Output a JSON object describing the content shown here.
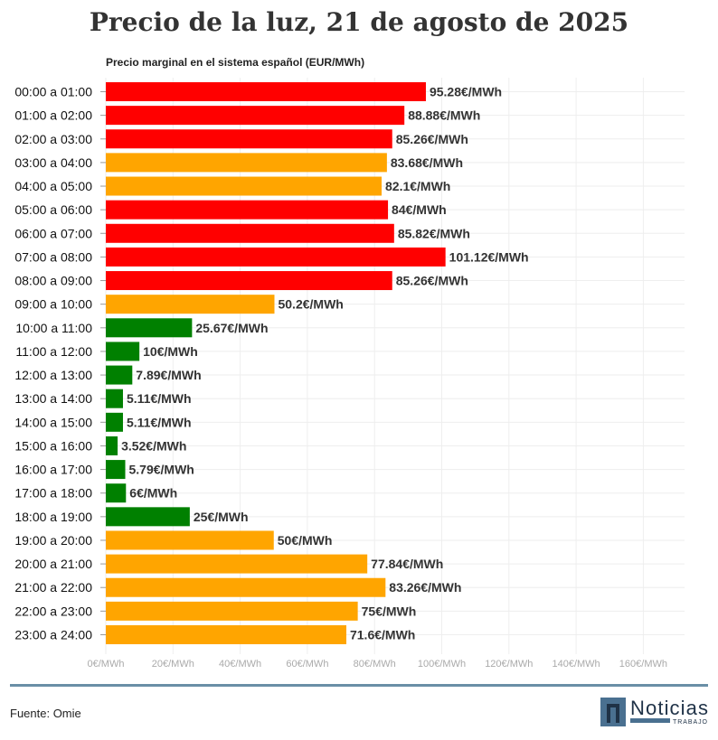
{
  "title": "Precio de la luz, 21 de agosto de 2025",
  "subtitle": "Precio marginal en el sistema español (EUR/MWh)",
  "source": "Fuente: Omie",
  "logo": {
    "name": "Noticias",
    "tagline": "TRABAJO"
  },
  "colors": {
    "high": "#ff0000",
    "mid": "#ffa500",
    "low": "#008000"
  },
  "chart_data": {
    "type": "bar",
    "orientation": "horizontal",
    "categories": [
      "00:00 a 01:00",
      "01:00 a 02:00",
      "02:00 a 03:00",
      "03:00 a 04:00",
      "04:00 a 05:00",
      "05:00 a 06:00",
      "06:00 a 07:00",
      "07:00 a 08:00",
      "08:00 a 09:00",
      "09:00 a 10:00",
      "10:00 a 11:00",
      "11:00 a 12:00",
      "12:00 a 13:00",
      "13:00 a 14:00",
      "14:00 a 15:00",
      "15:00 a 16:00",
      "16:00 a 17:00",
      "17:00 a 18:00",
      "18:00 a 19:00",
      "19:00 a 20:00",
      "20:00 a 21:00",
      "21:00 a 22:00",
      "22:00 a 23:00",
      "23:00 a 24:00"
    ],
    "values": [
      95.28,
      88.88,
      85.26,
      83.68,
      82.1,
      84,
      85.82,
      101.12,
      85.26,
      50.2,
      25.67,
      10,
      7.89,
      5.11,
      5.11,
      3.52,
      5.79,
      6,
      25,
      50,
      77.84,
      83.26,
      75,
      71.6
    ],
    "labels": [
      "95.28€/MWh",
      "88.88€/MWh",
      "85.26€/MWh",
      "83.68€/MWh",
      "82.1€/MWh",
      "84€/MWh",
      "85.82€/MWh",
      "101.12€/MWh",
      "85.26€/MWh",
      "50.2€/MWh",
      "25.67€/MWh",
      "10€/MWh",
      "7.89€/MWh",
      "5.11€/MWh",
      "5.11€/MWh",
      "3.52€/MWh",
      "5.79€/MWh",
      "6€/MWh",
      "25€/MWh",
      "50€/MWh",
      "77.84€/MWh",
      "83.26€/MWh",
      "75€/MWh",
      "71.6€/MWh"
    ],
    "bar_colors": [
      "high",
      "high",
      "high",
      "mid",
      "mid",
      "high",
      "high",
      "high",
      "high",
      "mid",
      "low",
      "low",
      "low",
      "low",
      "low",
      "low",
      "low",
      "low",
      "low",
      "mid",
      "mid",
      "mid",
      "mid",
      "mid"
    ],
    "xlim": [
      0,
      170
    ],
    "xticks": [
      0,
      20,
      40,
      60,
      80,
      100,
      120,
      140,
      160
    ],
    "xtick_labels": [
      "0€/MWh",
      "20€/MWh",
      "40€/MWh",
      "60€/MWh",
      "80€/MWh",
      "100€/MWh",
      "120€/MWh",
      "140€/MWh",
      "160€/MWh"
    ],
    "grid": true
  }
}
